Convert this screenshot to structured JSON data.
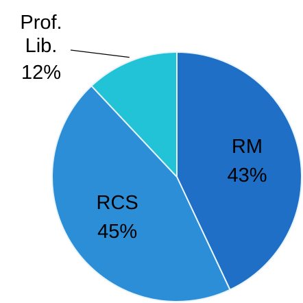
{
  "chart_data": {
    "type": "pie",
    "categories": [
      "RM",
      "RCS",
      "Prof. Lib."
    ],
    "values": [
      43,
      45,
      12
    ],
    "value_labels": [
      "43%",
      "45%",
      "12%"
    ],
    "colors": [
      "#1f6fc6",
      "#2c8ed6",
      "#22c3d6"
    ]
  }
}
